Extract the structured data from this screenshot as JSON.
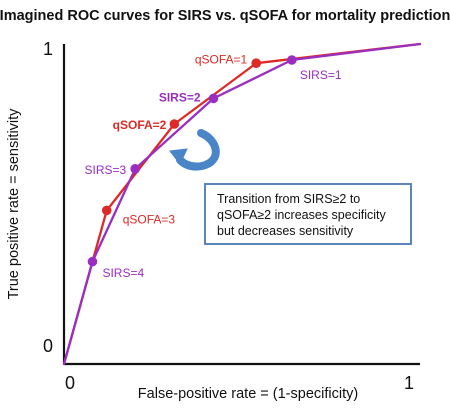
{
  "chart_data": {
    "type": "line",
    "title": "Imagined ROC curves for SIRS vs. qSOFA for mortality prediction",
    "xlabel": "False-positive rate = (1-specificity)",
    "ylabel": "True positive rate = sensitivity",
    "xlim": [
      0,
      1
    ],
    "ylim": [
      0,
      1
    ],
    "x_ticks": [
      {
        "value": 0,
        "label": "0"
      },
      {
        "value": 1,
        "label": "1"
      }
    ],
    "y_ticks": [
      {
        "value": 0,
        "label": "0"
      },
      {
        "value": 1,
        "label": "1"
      }
    ],
    "grid": false,
    "series": [
      {
        "color": "#dc2a26",
        "points": [
          {
            "x": 0.0,
            "y": 0.0
          },
          {
            "x": 0.12,
            "y": 0.48,
            "label": "qSOFA=3",
            "bold": false
          },
          {
            "x": 0.31,
            "y": 0.75,
            "label": "qSOFA=2",
            "bold": true
          },
          {
            "x": 0.54,
            "y": 0.94,
            "label": "qSOFA=1",
            "bold": false
          },
          {
            "x": 1.0,
            "y": 1.0
          }
        ]
      },
      {
        "color": "#9a2ec0",
        "points": [
          {
            "x": 0.0,
            "y": 0.0
          },
          {
            "x": 0.08,
            "y": 0.32,
            "label": "SIRS=4",
            "bold": false
          },
          {
            "x": 0.2,
            "y": 0.61,
            "label": "SIRS=3",
            "bold": false
          },
          {
            "x": 0.42,
            "y": 0.83,
            "label": "SIRS=2",
            "bold": true
          },
          {
            "x": 0.64,
            "y": 0.95,
            "label": "SIRS=1",
            "bold": false
          },
          {
            "x": 1.0,
            "y": 1.0
          }
        ]
      }
    ],
    "annotation": {
      "lines": [
        "Transition from SIRS≥2 to",
        "qSOFA≥2 increases specificity",
        "but decreases sensitivity"
      ],
      "border_color": "#4a78b0",
      "arrow_color": "#4a85c8"
    }
  }
}
